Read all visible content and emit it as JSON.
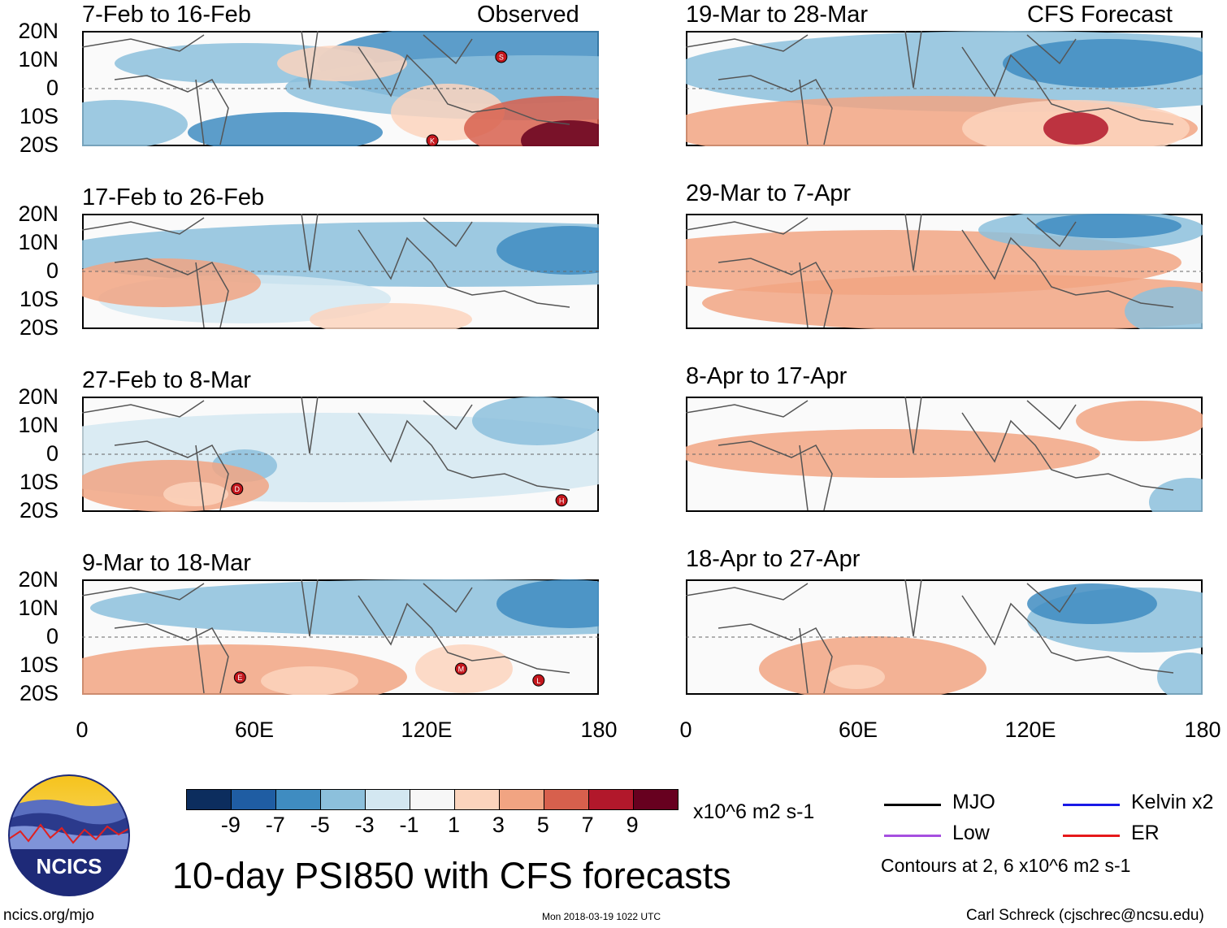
{
  "panel_titles": {
    "obs": [
      "7-Feb to 16-Feb",
      "17-Feb to 26-Feb",
      "27-Feb to 8-Mar",
      "9-Mar to 18-Mar"
    ],
    "fc": [
      "19-Mar to 28-Mar",
      "29-Mar to 7-Apr",
      "8-Apr to 17-Apr",
      "18-Apr to 27-Apr"
    ],
    "observed": "Observed",
    "forecast": "CFS Forecast"
  },
  "lat_labels": [
    "20N",
    "10N",
    "0",
    "10S",
    "20S"
  ],
  "lon_labels": [
    "0",
    "60E",
    "120E",
    "180"
  ],
  "storms": [
    {
      "panel": 0,
      "label": "S",
      "lon": 146,
      "lat": 11
    },
    {
      "panel": 0,
      "label": "K",
      "lon": 122,
      "lat": -18
    },
    {
      "panel": 2,
      "label": "D",
      "lon": 54,
      "lat": -12
    },
    {
      "panel": 2,
      "label": "H",
      "lon": 167,
      "lat": -16
    },
    {
      "panel": 3,
      "label": "E",
      "lon": 55,
      "lat": -14
    },
    {
      "panel": 3,
      "label": "M",
      "lon": 132,
      "lat": -11
    },
    {
      "panel": 3,
      "label": "L",
      "lon": 159,
      "lat": -15
    }
  ],
  "colorbar": {
    "colors": [
      "#0c2d5e",
      "#1f5da3",
      "#3f8cc1",
      "#8cc0dc",
      "#d3e7f1",
      "#f7f7f7",
      "#fbd4bd",
      "#f1a482",
      "#d7604d",
      "#b2182b",
      "#67001f"
    ],
    "ticks": [
      "-9",
      "-7",
      "-5",
      "-3",
      "-1",
      "1",
      "3",
      "5",
      "7",
      "9"
    ],
    "units": "x10^6 m2 s-1"
  },
  "legend": {
    "mjo": "MJO",
    "kelvin": "Kelvin x2",
    "low": "Low",
    "er": "ER",
    "mjo_color": "#000000",
    "kelvin_color": "#1a1ae6",
    "low_color": "#a64fe0",
    "er_color": "#e6191b",
    "contours_note": "Contours at 2, 6 x10^6 m2 s-1"
  },
  "footer": {
    "logo_text": "NCICS",
    "main_title": "10-day PSI850 with CFS forecasts",
    "site": "ncics.org/mjo",
    "timestamp": "Mon 2018-03-19 1022 UTC",
    "credit": "Carl Schreck (cjschrec@ncsu.edu)"
  }
}
